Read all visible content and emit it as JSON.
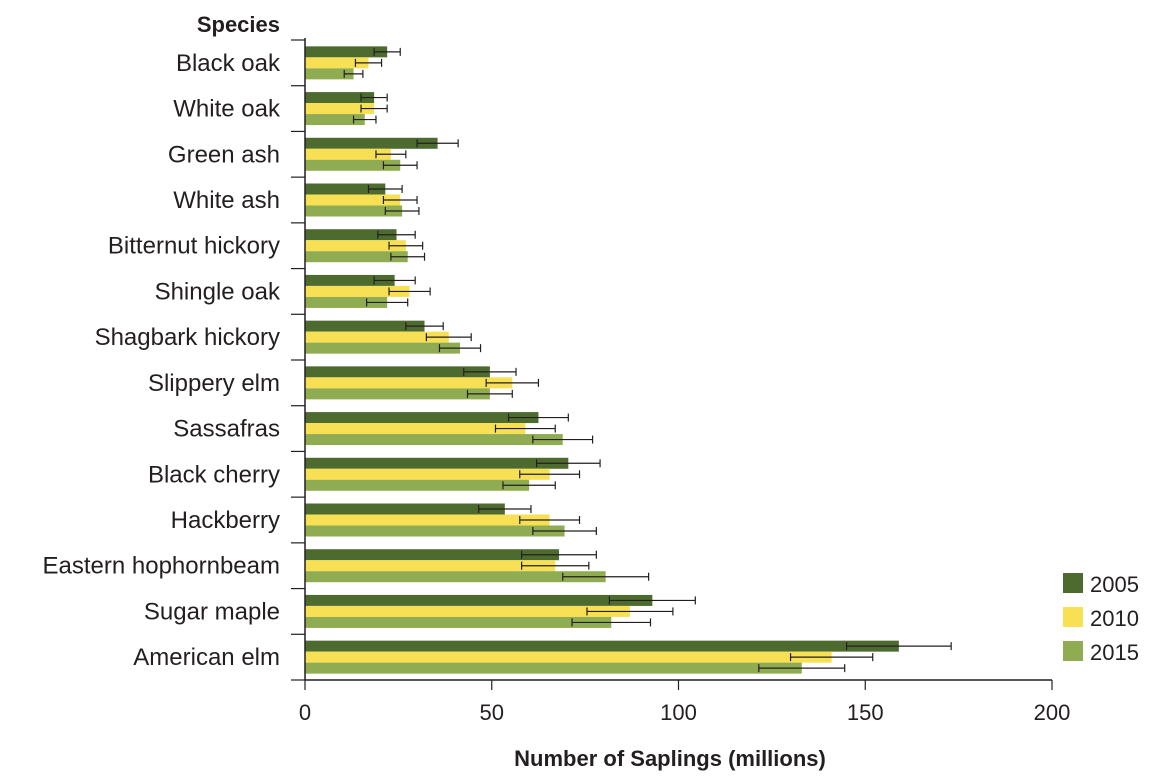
{
  "chart_data": {
    "type": "bar",
    "orientation": "horizontal",
    "title": "",
    "ylabel": "Species",
    "xlabel": "Number of Saplings (millions)",
    "xlim": [
      0,
      200
    ],
    "xticks": [
      0,
      50,
      100,
      150,
      200
    ],
    "grid": false,
    "legend_position": "bottom-right",
    "categories": [
      "Black oak",
      "White oak",
      "Green ash",
      "White ash",
      "Bitternut hickory",
      "Shingle oak",
      "Shagbark hickory",
      "Slippery elm",
      "Sassafras",
      "Black cherry",
      "Hackberry",
      "Eastern hophornbeam",
      "Sugar maple",
      "American elm"
    ],
    "series": [
      {
        "name": "2005",
        "color": "#4e6b2f",
        "values": [
          22,
          18.5,
          35.5,
          21.5,
          24.5,
          24,
          32,
          49.5,
          62.5,
          70.5,
          53.5,
          68,
          93,
          159
        ],
        "errors": [
          3.5,
          3.5,
          5.5,
          4.5,
          5,
          5.5,
          5,
          7,
          8,
          8.5,
          7,
          10,
          11.5,
          14
        ]
      },
      {
        "name": "2010",
        "color": "#f7e054",
        "values": [
          17,
          18.5,
          23,
          25.5,
          27,
          28,
          38.5,
          55.5,
          59,
          65.5,
          65.5,
          67,
          87,
          141
        ],
        "errors": [
          3.5,
          3.5,
          4,
          4.5,
          4.5,
          5.5,
          6,
          7,
          8,
          8,
          8,
          9,
          11.5,
          11
        ]
      },
      {
        "name": "2015",
        "color": "#8fac52",
        "values": [
          13,
          16,
          25.5,
          26,
          27.5,
          22,
          41.5,
          49.5,
          69,
          60,
          69.5,
          80.5,
          82,
          133
        ],
        "errors": [
          2.5,
          3,
          4.5,
          4.5,
          4.5,
          5.5,
          5.5,
          6,
          8,
          7,
          8.5,
          11.5,
          10.5,
          11.5
        ]
      }
    ]
  }
}
